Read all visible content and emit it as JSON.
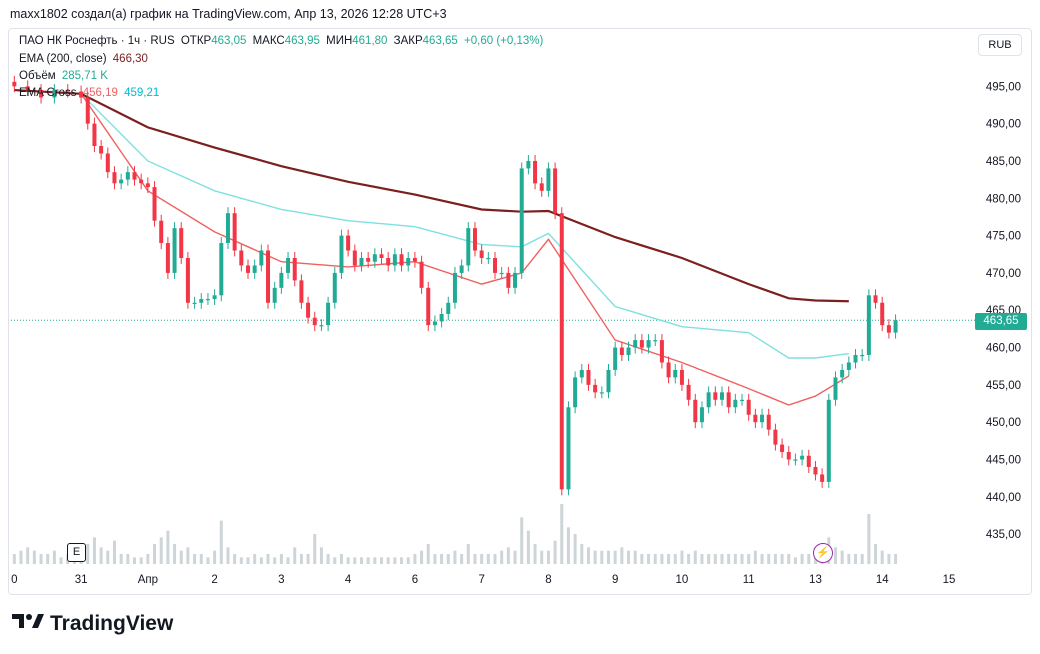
{
  "caption": "maxx1802 создал(а) график на TradingView.com, Апр 13, 2026 12:28 UTC+3",
  "legend": {
    "symbol": "ПАО НК Роснефть · 1ч · RUS",
    "open_label": "ОТКР",
    "open": "463,05",
    "high_label": "МАКС",
    "high": "463,95",
    "low_label": "МИН",
    "low": "461,80",
    "close_label": "ЗАКР",
    "close": "463,65",
    "change": "+0,60 (+0,13%)",
    "ema200_label": "EMA (200, close)",
    "ema200_value": "466,30",
    "volume_label": "Объём",
    "volume_value": "285,71 K",
    "emacross_label": "EMA Cross",
    "emacross_fast": "456,19",
    "emacross_slow": "459,21"
  },
  "currency_button": "RUB",
  "last_price": "463,65",
  "events_button": "E",
  "footer_brand": "TradingView",
  "colors": {
    "up": "#22ab94",
    "down": "#f23645",
    "ema200": "#7b1f1f",
    "ema_fast": "#f06060",
    "ema_slow": "#7fe0e0",
    "volume": "#cdd5d8"
  },
  "chart_data": {
    "type": "candlestick",
    "price_axis": [
      "495,00",
      "490,00",
      "485,00",
      "480,00",
      "475,00",
      "470,00",
      "465,00",
      "460,00",
      "455,00",
      "450,00",
      "445,00",
      "440,00",
      "435,00"
    ],
    "price_ticks": [
      495,
      490,
      485,
      480,
      475,
      470,
      465,
      460,
      455,
      450,
      445,
      440,
      435
    ],
    "time_axis": [
      "0",
      "31",
      "Апр",
      "2",
      "3",
      "4",
      "6",
      "7",
      "8",
      "9",
      "10",
      "11",
      "13",
      "14",
      "15"
    ],
    "time_ticks_x": [
      0,
      10,
      20,
      30,
      40,
      50,
      60,
      70,
      80,
      90,
      100,
      110,
      120,
      130,
      140
    ],
    "ylim": [
      431,
      500
    ],
    "xlim": [
      -0.5,
      143
    ],
    "closes": [
      [
        0,
        495
      ],
      [
        2,
        494.5
      ],
      [
        4,
        493.5
      ],
      [
        6,
        494.5
      ],
      [
        8,
        494.3
      ],
      [
        10,
        493.5
      ],
      [
        11,
        490
      ],
      [
        12,
        487
      ],
      [
        13,
        486
      ],
      [
        14,
        483.5
      ],
      [
        15,
        482
      ],
      [
        16,
        482.5
      ],
      [
        17,
        483.5
      ],
      [
        18,
        482.5
      ],
      [
        19,
        482
      ],
      [
        20,
        481.5
      ],
      [
        21,
        477
      ],
      [
        22,
        474
      ],
      [
        23,
        470
      ],
      [
        24,
        476
      ],
      [
        25,
        472
      ],
      [
        26,
        466
      ],
      [
        27,
        466
      ],
      [
        28,
        466.5
      ],
      [
        29,
        466.5
      ],
      [
        30,
        467
      ],
      [
        31,
        474
      ],
      [
        32,
        478
      ],
      [
        33,
        473
      ],
      [
        34,
        471
      ],
      [
        35,
        470
      ],
      [
        36,
        471
      ],
      [
        37,
        473
      ],
      [
        38,
        466
      ],
      [
        39,
        468
      ],
      [
        40,
        470
      ],
      [
        41,
        472
      ],
      [
        42,
        469
      ],
      [
        43,
        466
      ],
      [
        44,
        464
      ],
      [
        45,
        463
      ],
      [
        46,
        463
      ],
      [
        47,
        466
      ],
      [
        48,
        470
      ],
      [
        49,
        475
      ],
      [
        50,
        473
      ],
      [
        51,
        471
      ],
      [
        52,
        472
      ],
      [
        53,
        471.5
      ],
      [
        54,
        472.5
      ],
      [
        55,
        472
      ],
      [
        56,
        471
      ],
      [
        57,
        472.5
      ],
      [
        58,
        471
      ],
      [
        59,
        472
      ],
      [
        60,
        471.5
      ],
      [
        61,
        468
      ],
      [
        62,
        463
      ],
      [
        63,
        463.5
      ],
      [
        64,
        464.5
      ],
      [
        65,
        466
      ],
      [
        66,
        470
      ],
      [
        67,
        471
      ],
      [
        68,
        476
      ],
      [
        69,
        473
      ],
      [
        70,
        472
      ],
      [
        71,
        472
      ],
      [
        72,
        470
      ],
      [
        73,
        470
      ],
      [
        74,
        468
      ],
      [
        75,
        470
      ],
      [
        76,
        484
      ],
      [
        77,
        485
      ],
      [
        78,
        482
      ],
      [
        79,
        481
      ],
      [
        80,
        484
      ],
      [
        81,
        478
      ],
      [
        82,
        441
      ],
      [
        83,
        452
      ],
      [
        84,
        456
      ],
      [
        85,
        457
      ],
      [
        86,
        455
      ],
      [
        87,
        454
      ],
      [
        88,
        454
      ],
      [
        89,
        457
      ],
      [
        90,
        460
      ],
      [
        91,
        459
      ],
      [
        92,
        460
      ],
      [
        93,
        461
      ],
      [
        94,
        460
      ],
      [
        95,
        461
      ],
      [
        96,
        461
      ],
      [
        97,
        458
      ],
      [
        98,
        456
      ],
      [
        99,
        457
      ],
      [
        100,
        455
      ],
      [
        101,
        453
      ],
      [
        102,
        450
      ],
      [
        103,
        452
      ],
      [
        104,
        454
      ],
      [
        105,
        453
      ],
      [
        106,
        454
      ],
      [
        107,
        452
      ],
      [
        108,
        453
      ],
      [
        109,
        453
      ],
      [
        110,
        451
      ],
      [
        111,
        450
      ],
      [
        112,
        451
      ],
      [
        113,
        449
      ],
      [
        114,
        447
      ],
      [
        115,
        446
      ],
      [
        116,
        445
      ],
      [
        117,
        445
      ],
      [
        118,
        445.5
      ],
      [
        119,
        444
      ],
      [
        120,
        443
      ],
      [
        121,
        442
      ],
      [
        122,
        453
      ],
      [
        123,
        456
      ],
      [
        124,
        457
      ],
      [
        125,
        458
      ],
      [
        126,
        459
      ],
      [
        127,
        459
      ],
      [
        128,
        467
      ],
      [
        129,
        466
      ],
      [
        130,
        463
      ],
      [
        131,
        462
      ],
      [
        132,
        463.65
      ]
    ],
    "ema200": [
      [
        0,
        494.5
      ],
      [
        10,
        494
      ],
      [
        20,
        489.5
      ],
      [
        30,
        486.8
      ],
      [
        40,
        484.3
      ],
      [
        50,
        482.2
      ],
      [
        60,
        480.5
      ],
      [
        70,
        478.5
      ],
      [
        76,
        478.2
      ],
      [
        80,
        478.3
      ],
      [
        90,
        474.8
      ],
      [
        100,
        472
      ],
      [
        110,
        468.5
      ],
      [
        116,
        466.6
      ],
      [
        120,
        466.3
      ],
      [
        125,
        466.2
      ]
    ],
    "ema_slow": [
      [
        0,
        494.5
      ],
      [
        10,
        494
      ],
      [
        20,
        485
      ],
      [
        30,
        481
      ],
      [
        40,
        478.5
      ],
      [
        50,
        477
      ],
      [
        60,
        476.2
      ],
      [
        70,
        473.8
      ],
      [
        76,
        473.5
      ],
      [
        80,
        475.3
      ],
      [
        90,
        465.5
      ],
      [
        100,
        462.8
      ],
      [
        110,
        462
      ],
      [
        116,
        458.6
      ],
      [
        120,
        458.6
      ],
      [
        125,
        459.2
      ]
    ],
    "ema_fast": [
      [
        0,
        494.5
      ],
      [
        10,
        494
      ],
      [
        20,
        481
      ],
      [
        30,
        475.5
      ],
      [
        40,
        471.5
      ],
      [
        50,
        470.8
      ],
      [
        60,
        471.5
      ],
      [
        70,
        468.5
      ],
      [
        76,
        470
      ],
      [
        80,
        474.5
      ],
      [
        90,
        461
      ],
      [
        100,
        458
      ],
      [
        110,
        454.5
      ],
      [
        116,
        452.3
      ],
      [
        120,
        453.5
      ],
      [
        125,
        456.2
      ]
    ],
    "volume": [
      [
        0,
        3
      ],
      [
        1,
        4
      ],
      [
        2,
        5
      ],
      [
        3,
        4
      ],
      [
        4,
        3
      ],
      [
        5,
        3
      ],
      [
        6,
        4
      ],
      [
        7,
        2
      ],
      [
        8,
        3
      ],
      [
        9,
        2
      ],
      [
        10,
        3
      ],
      [
        11,
        6
      ],
      [
        12,
        8
      ],
      [
        13,
        5
      ],
      [
        14,
        4
      ],
      [
        15,
        7
      ],
      [
        16,
        3
      ],
      [
        17,
        3
      ],
      [
        18,
        2
      ],
      [
        19,
        2
      ],
      [
        20,
        3
      ],
      [
        21,
        6
      ],
      [
        22,
        8
      ],
      [
        23,
        10
      ],
      [
        24,
        6
      ],
      [
        25,
        4
      ],
      [
        26,
        5
      ],
      [
        27,
        3
      ],
      [
        28,
        3
      ],
      [
        29,
        2
      ],
      [
        30,
        4
      ],
      [
        31,
        13
      ],
      [
        32,
        5
      ],
      [
        33,
        3
      ],
      [
        34,
        2
      ],
      [
        35,
        2
      ],
      [
        36,
        3
      ],
      [
        37,
        2
      ],
      [
        38,
        3
      ],
      [
        39,
        2
      ],
      [
        40,
        3
      ],
      [
        41,
        2
      ],
      [
        42,
        5
      ],
      [
        43,
        3
      ],
      [
        44,
        3
      ],
      [
        45,
        9
      ],
      [
        46,
        5
      ],
      [
        47,
        3
      ],
      [
        48,
        2
      ],
      [
        49,
        3
      ],
      [
        50,
        2
      ],
      [
        51,
        2
      ],
      [
        52,
        2
      ],
      [
        53,
        2
      ],
      [
        54,
        2
      ],
      [
        55,
        2
      ],
      [
        56,
        2
      ],
      [
        57,
        2
      ],
      [
        58,
        2
      ],
      [
        59,
        2
      ],
      [
        60,
        3
      ],
      [
        61,
        4
      ],
      [
        62,
        6
      ],
      [
        63,
        3
      ],
      [
        64,
        3
      ],
      [
        65,
        3
      ],
      [
        66,
        4
      ],
      [
        67,
        3
      ],
      [
        68,
        6
      ],
      [
        69,
        3
      ],
      [
        70,
        3
      ],
      [
        71,
        3
      ],
      [
        72,
        3
      ],
      [
        73,
        4
      ],
      [
        74,
        5
      ],
      [
        75,
        4
      ],
      [
        76,
        14
      ],
      [
        77,
        10
      ],
      [
        78,
        6
      ],
      [
        79,
        4
      ],
      [
        80,
        4
      ],
      [
        81,
        7
      ],
      [
        82,
        18
      ],
      [
        83,
        11
      ],
      [
        84,
        9
      ],
      [
        85,
        6
      ],
      [
        86,
        5
      ],
      [
        87,
        4
      ],
      [
        88,
        4
      ],
      [
        89,
        4
      ],
      [
        90,
        4
      ],
      [
        91,
        5
      ],
      [
        92,
        4
      ],
      [
        93,
        4
      ],
      [
        94,
        3
      ],
      [
        95,
        3
      ],
      [
        96,
        3
      ],
      [
        97,
        3
      ],
      [
        98,
        3
      ],
      [
        99,
        3
      ],
      [
        100,
        4
      ],
      [
        101,
        3
      ],
      [
        102,
        4
      ],
      [
        103,
        3
      ],
      [
        104,
        3
      ],
      [
        105,
        3
      ],
      [
        106,
        3
      ],
      [
        107,
        3
      ],
      [
        108,
        3
      ],
      [
        109,
        3
      ],
      [
        110,
        3
      ],
      [
        111,
        4
      ],
      [
        112,
        3
      ],
      [
        113,
        3
      ],
      [
        114,
        3
      ],
      [
        115,
        3
      ],
      [
        116,
        3
      ],
      [
        117,
        2
      ],
      [
        118,
        3
      ],
      [
        119,
        3
      ],
      [
        120,
        5
      ],
      [
        121,
        4
      ],
      [
        122,
        8
      ],
      [
        123,
        5
      ],
      [
        124,
        4
      ],
      [
        125,
        3
      ],
      [
        126,
        3
      ],
      [
        127,
        3
      ],
      [
        128,
        15
      ],
      [
        129,
        6
      ],
      [
        130,
        4
      ],
      [
        131,
        3
      ],
      [
        132,
        3
      ]
    ]
  }
}
